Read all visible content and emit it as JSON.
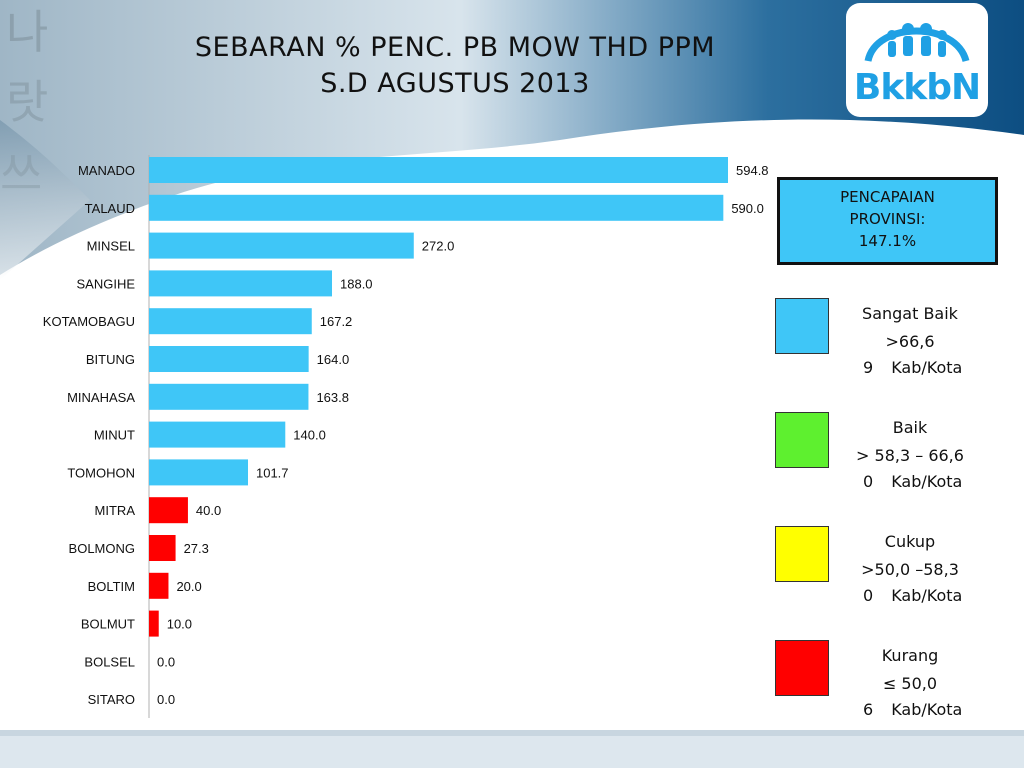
{
  "title": {
    "line1": "SEBARAN % PENC. PB MOW THD PPM",
    "line2": "S.D AGUSTUS 2013"
  },
  "logo": {
    "text": "BkkbN",
    "color": "#1fa0e4"
  },
  "achievement": {
    "line1": "PENCAPAIAN",
    "line2": "PROVINSI:",
    "line3": "147.1%"
  },
  "legend": [
    {
      "label": "Sangat Baik",
      "range": ">66,6",
      "count": "9",
      "unit": "Kab/Kota",
      "color": "#3fc6f7"
    },
    {
      "label": "Baik",
      "range": "> 58,3 – 66,6",
      "count": "0",
      "unit": "Kab/Kota",
      "color": "#5ef02f"
    },
    {
      "label": "Cukup",
      "range": ">50,0 –58,3",
      "count": "0",
      "unit": "Kab/Kota",
      "color": "#ffff00"
    },
    {
      "label": "Kurang",
      "range": "≤ 50,0",
      "count": "6",
      "unit": "Kab/Kota",
      "color": "#ff0000"
    }
  ],
  "chart_data": {
    "type": "bar",
    "orientation": "horizontal",
    "categories": [
      "MANADO",
      "TALAUD",
      "MINSEL",
      "SANGIHE",
      "KOTAMOBAGU",
      "BITUNG",
      "MINAHASA",
      "MINUT",
      "TOMOHON",
      "MITRA",
      "BOLMONG",
      "BOLTIM",
      "BOLMUT",
      "BOLSEL",
      "SITARO"
    ],
    "values": [
      594.8,
      590.0,
      272.0,
      188.0,
      167.2,
      164.0,
      163.8,
      140.0,
      101.7,
      40.0,
      27.3,
      20.0,
      10.0,
      0.0,
      0.0
    ],
    "value_labels": [
      "594.8",
      "590.0",
      "272.0",
      "188.0",
      "167.2",
      "164.0",
      "163.8",
      "140.0",
      "101.7",
      "40.0",
      "27.3",
      "20.0",
      "10.0",
      "0.0",
      "0.0"
    ],
    "xlim": [
      0,
      600
    ],
    "grid": false,
    "bar_colors": {
      "above_threshold": "#3fc6f7",
      "below_threshold": "#ff0000"
    },
    "threshold": 50.0
  }
}
